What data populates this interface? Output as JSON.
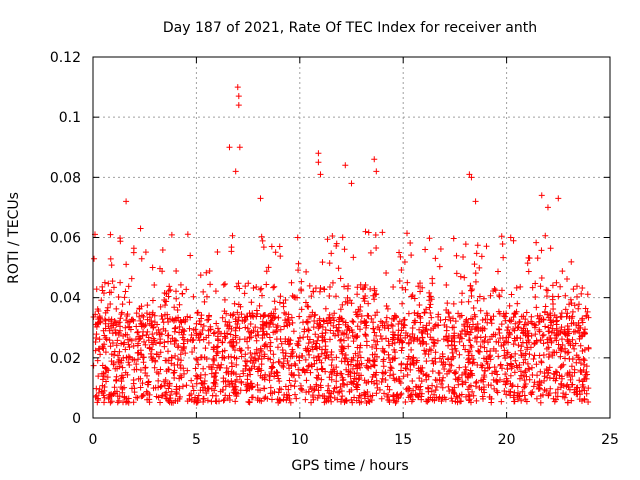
{
  "chart_data": {
    "type": "scatter",
    "title": "Day 187 of 2021, Rate Of TEC Index for receiver anth",
    "xlabel": "GPS time / hours",
    "ylabel": "ROTI / TECUs",
    "xlim": [
      0,
      25
    ],
    "ylim": [
      0,
      0.12
    ],
    "xticks": [
      0,
      5,
      10,
      15,
      20,
      25
    ],
    "xtick_labels": [
      "0",
      "5",
      "10",
      "15",
      "20",
      "25"
    ],
    "yticks": [
      0,
      0.02,
      0.04,
      0.06,
      0.08,
      0.1,
      0.12
    ],
    "ytick_labels": [
      "0",
      "0.02",
      "0.04",
      "0.06",
      "0.08",
      "0.1",
      "0.12"
    ],
    "grid": true,
    "marker": "+",
    "color": "#ff0000",
    "series": [
      {
        "name": "ROTI",
        "notable_points": [
          {
            "x": 1.6,
            "y": 0.072
          },
          {
            "x": 2.3,
            "y": 0.063
          },
          {
            "x": 4.7,
            "y": 0.054
          },
          {
            "x": 6.6,
            "y": 0.09
          },
          {
            "x": 6.9,
            "y": 0.082
          },
          {
            "x": 7.0,
            "y": 0.11
          },
          {
            "x": 7.05,
            "y": 0.107
          },
          {
            "x": 7.05,
            "y": 0.104
          },
          {
            "x": 7.1,
            "y": 0.09
          },
          {
            "x": 8.1,
            "y": 0.073
          },
          {
            "x": 9.9,
            "y": 0.06
          },
          {
            "x": 10.9,
            "y": 0.088
          },
          {
            "x": 10.9,
            "y": 0.085
          },
          {
            "x": 11.0,
            "y": 0.081
          },
          {
            "x": 12.2,
            "y": 0.084
          },
          {
            "x": 12.5,
            "y": 0.078
          },
          {
            "x": 13.6,
            "y": 0.086
          },
          {
            "x": 13.7,
            "y": 0.082
          },
          {
            "x": 14.8,
            "y": 0.055
          },
          {
            "x": 18.2,
            "y": 0.081
          },
          {
            "x": 18.3,
            "y": 0.08
          },
          {
            "x": 18.5,
            "y": 0.072
          },
          {
            "x": 20.2,
            "y": 0.06
          },
          {
            "x": 21.7,
            "y": 0.074
          },
          {
            "x": 22.0,
            "y": 0.07
          },
          {
            "x": 22.5,
            "y": 0.073
          }
        ],
        "baseline_range": [
          0.005,
          0.035
        ]
      }
    ]
  }
}
